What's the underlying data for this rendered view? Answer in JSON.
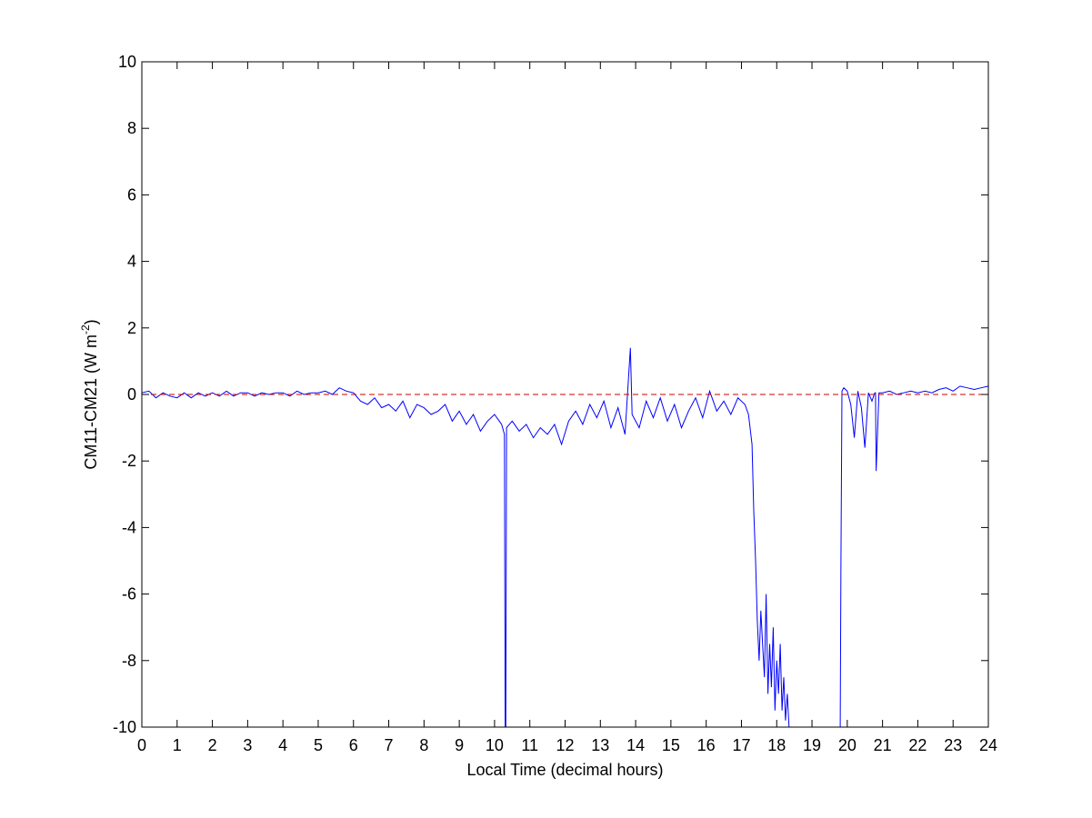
{
  "chart_data": {
    "type": "line",
    "title": "",
    "xlabel": "Local Time (decimal hours)",
    "ylabel": {
      "prefix": "CM11-CM21 (W m",
      "superscript": "-2",
      "suffix": ")"
    },
    "xlim": [
      0,
      24
    ],
    "ylim": [
      -10,
      10
    ],
    "xticks": [
      0,
      1,
      2,
      3,
      4,
      5,
      6,
      7,
      8,
      9,
      10,
      11,
      12,
      13,
      14,
      15,
      16,
      17,
      18,
      19,
      20,
      21,
      22,
      23,
      24
    ],
    "yticks": [
      -10,
      -8,
      -6,
      -4,
      -2,
      0,
      2,
      4,
      6,
      8,
      10
    ],
    "grid": false,
    "legend": "none",
    "series": [
      {
        "color": "#0000ff",
        "style": "solid",
        "x": [
          0,
          0.2,
          0.4,
          0.6,
          0.8,
          1,
          1.2,
          1.4,
          1.6,
          1.8,
          2,
          2.2,
          2.4,
          2.6,
          2.8,
          3,
          3.2,
          3.4,
          3.6,
          3.8,
          4,
          4.2,
          4.4,
          4.6,
          4.8,
          5,
          5.2,
          5.4,
          5.6,
          5.8,
          6,
          6.2,
          6.4,
          6.6,
          6.8,
          7,
          7.2,
          7.4,
          7.6,
          7.8,
          8,
          8.2,
          8.4,
          8.6,
          8.8,
          9,
          9.2,
          9.4,
          9.6,
          9.8,
          10,
          10.2,
          10.28,
          10.3,
          10.32,
          10.34,
          10.5,
          10.7,
          10.9,
          11.1,
          11.3,
          11.5,
          11.7,
          11.9,
          12.1,
          12.3,
          12.5,
          12.7,
          12.9,
          13.1,
          13.3,
          13.5,
          13.7,
          13.85,
          13.9,
          14.1,
          14.3,
          14.5,
          14.7,
          14.9,
          15.1,
          15.3,
          15.5,
          15.7,
          15.9,
          16.1,
          16.3,
          16.5,
          16.7,
          16.9,
          17.1,
          17.2,
          17.3,
          17.35,
          17.4,
          17.45,
          17.5,
          17.55,
          17.6,
          17.65,
          17.7,
          17.75,
          17.8,
          17.85,
          17.9,
          17.95,
          18,
          18.05,
          18.1,
          18.15,
          18.2,
          18.25,
          18.3,
          18.35,
          18.4,
          18.5,
          19,
          19.5,
          19.8,
          19.82,
          19.85,
          19.9,
          20,
          20.1,
          20.2,
          20.3,
          20.4,
          20.5,
          20.6,
          20.7,
          20.78,
          20.8,
          20.82,
          20.9,
          21,
          21.2,
          21.4,
          21.6,
          21.8,
          22,
          22.2,
          22.4,
          22.6,
          22.8,
          23,
          23.2,
          23.4,
          23.6,
          23.8,
          24
        ],
        "y": [
          0.05,
          0.1,
          -0.1,
          0.05,
          -0.05,
          -0.1,
          0.05,
          -0.1,
          0.05,
          -0.05,
          0.05,
          -0.05,
          0.1,
          -0.05,
          0.05,
          0.05,
          -0.05,
          0.05,
          0,
          0.05,
          0.05,
          -0.05,
          0.1,
          0,
          0.05,
          0.05,
          0.1,
          0,
          0.2,
          0.1,
          0.05,
          -0.2,
          -0.3,
          -0.1,
          -0.4,
          -0.3,
          -0.5,
          -0.2,
          -0.7,
          -0.3,
          -0.4,
          -0.6,
          -0.5,
          -0.3,
          -0.8,
          -0.5,
          -0.9,
          -0.6,
          -1.1,
          -0.8,
          -0.6,
          -0.9,
          -1.2,
          -10,
          -10,
          -1.0,
          -0.8,
          -1.1,
          -0.9,
          -1.3,
          -1.0,
          -1.2,
          -0.9,
          -1.5,
          -0.8,
          -0.5,
          -0.9,
          -0.3,
          -0.7,
          -0.2,
          -1.0,
          -0.4,
          -1.2,
          1.4,
          -0.6,
          -1.0,
          -0.2,
          -0.7,
          -0.1,
          -0.8,
          -0.3,
          -1.0,
          -0.5,
          -0.1,
          -0.7,
          0.1,
          -0.5,
          -0.2,
          -0.6,
          -0.1,
          -0.3,
          -0.6,
          -1.5,
          -3.5,
          -5.0,
          -6.8,
          -8.0,
          -6.5,
          -7.5,
          -8.5,
          -6.0,
          -9.0,
          -7.5,
          -8.8,
          -7.0,
          -9.5,
          -8.0,
          -9.0,
          -7.5,
          -9.5,
          -8.5,
          -9.8,
          -9.0,
          -10,
          -10,
          -10,
          -10,
          -10,
          -10,
          -5,
          0.1,
          0.2,
          0.1,
          -0.3,
          -1.3,
          0.1,
          -0.4,
          -1.6,
          0.05,
          -0.2,
          0.05,
          0.05,
          -2.3,
          0.05,
          0.05,
          0.1,
          0,
          0.05,
          0.1,
          0.05,
          0.1,
          0.05,
          0.15,
          0.2,
          0.1,
          0.25,
          0.2,
          0.15,
          0.2,
          0.25
        ]
      },
      {
        "color": "#cc0000",
        "style": "dashed",
        "x": [
          0,
          24
        ],
        "y": [
          0,
          0
        ]
      }
    ]
  }
}
